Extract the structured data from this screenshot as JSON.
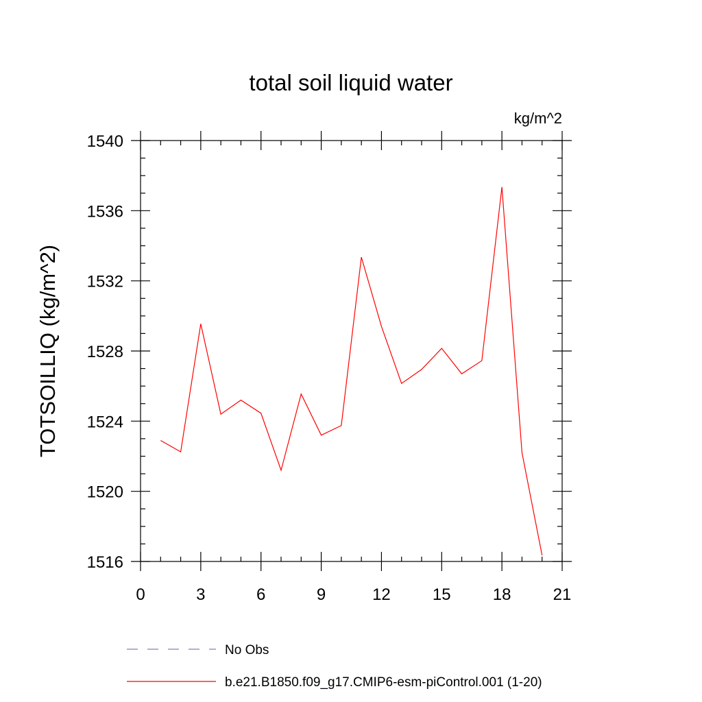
{
  "chart_data": {
    "type": "line",
    "title": "total soil liquid water",
    "units": "kg/m^2",
    "xlabel": "",
    "ylabel": "TOTSOILLIQ  (kg/m^2)",
    "xlim": [
      0,
      21
    ],
    "ylim": [
      1516,
      1540
    ],
    "x_ticks": [
      0,
      3,
      6,
      9,
      12,
      15,
      18,
      21
    ],
    "y_ticks": [
      1516,
      1520,
      1524,
      1528,
      1532,
      1536,
      1540
    ],
    "x_minor_step": 1,
    "y_minor_step": 1,
    "grid": false,
    "legend_position": "bottom",
    "series": [
      {
        "name": "No Obs",
        "color": "#8080c0",
        "style": "dashed",
        "x": [],
        "values": []
      },
      {
        "name": "b.e21.B1850.f09_g17.CMIP6-esm-piControl.001 (1-20)",
        "color": "#ff0000",
        "style": "solid",
        "x": [
          1,
          2,
          3,
          4,
          5,
          6,
          7,
          8,
          9,
          10,
          11,
          12,
          13,
          14,
          15,
          16,
          17,
          18,
          19,
          20
        ],
        "values": [
          1522.9,
          1522.25,
          1529.55,
          1524.4,
          1525.2,
          1524.45,
          1521.2,
          1525.55,
          1523.2,
          1523.75,
          1533.35,
          1529.4,
          1526.15,
          1526.95,
          1528.15,
          1526.7,
          1527.45,
          1537.35,
          1522.2,
          1516.35
        ]
      }
    ]
  }
}
